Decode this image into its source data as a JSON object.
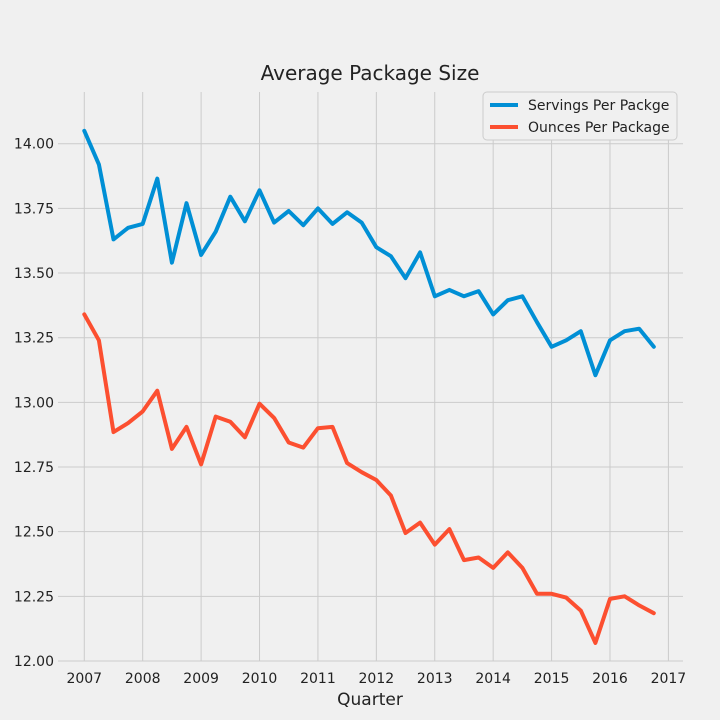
{
  "chart_data": {
    "type": "line",
    "title": "Average Package Size",
    "xlabel": "Quarter",
    "ylabel": "",
    "xlim": [
      2006.55,
      2017.25
    ],
    "ylim": [
      12.0,
      14.2
    ],
    "x_ticks": [
      2007,
      2008,
      2009,
      2010,
      2011,
      2012,
      2013,
      2014,
      2015,
      2016,
      2017
    ],
    "y_ticks": [
      12.0,
      12.25,
      12.5,
      12.75,
      13.0,
      13.25,
      13.5,
      13.75,
      14.0
    ],
    "grid": true,
    "legend_position": "top-right",
    "x": [
      2007.0,
      2007.25,
      2007.5,
      2007.75,
      2008.0,
      2008.25,
      2008.5,
      2008.75,
      2009.0,
      2009.25,
      2009.5,
      2009.75,
      2010.0,
      2010.25,
      2010.5,
      2010.75,
      2011.0,
      2011.25,
      2011.5,
      2011.75,
      2012.0,
      2012.25,
      2012.5,
      2012.75,
      2013.0,
      2013.25,
      2013.5,
      2013.75,
      2014.0,
      2014.25,
      2014.5,
      2014.75,
      2015.0,
      2015.25,
      2015.5,
      2015.75,
      2016.0,
      2016.25,
      2016.5,
      2016.75
    ],
    "series": [
      {
        "name": "Servings Per Packge",
        "color": "#008fd5",
        "values": [
          14.05,
          13.92,
          13.63,
          13.675,
          13.69,
          13.865,
          13.54,
          13.77,
          13.57,
          13.66,
          13.795,
          13.7,
          13.82,
          13.695,
          13.74,
          13.685,
          13.75,
          13.69,
          13.735,
          13.695,
          13.6,
          13.565,
          13.48,
          13.58,
          13.41,
          13.435,
          13.41,
          13.43,
          13.34,
          13.395,
          13.41,
          13.31,
          13.215,
          13.24,
          13.275,
          13.105,
          13.24,
          13.275,
          13.285,
          13.215
        ]
      },
      {
        "name": "Ounces Per Package",
        "color": "#fc4f30",
        "values": [
          13.34,
          13.24,
          12.885,
          12.92,
          12.965,
          13.045,
          12.82,
          12.905,
          12.76,
          12.945,
          12.925,
          12.865,
          12.995,
          12.94,
          12.845,
          12.825,
          12.9,
          12.905,
          12.765,
          12.73,
          12.7,
          12.64,
          12.495,
          12.535,
          12.45,
          12.51,
          12.39,
          12.4,
          12.36,
          12.42,
          12.36,
          12.26,
          12.26,
          12.245,
          12.195,
          12.07,
          12.24,
          12.25,
          12.215,
          12.185
        ]
      }
    ]
  }
}
